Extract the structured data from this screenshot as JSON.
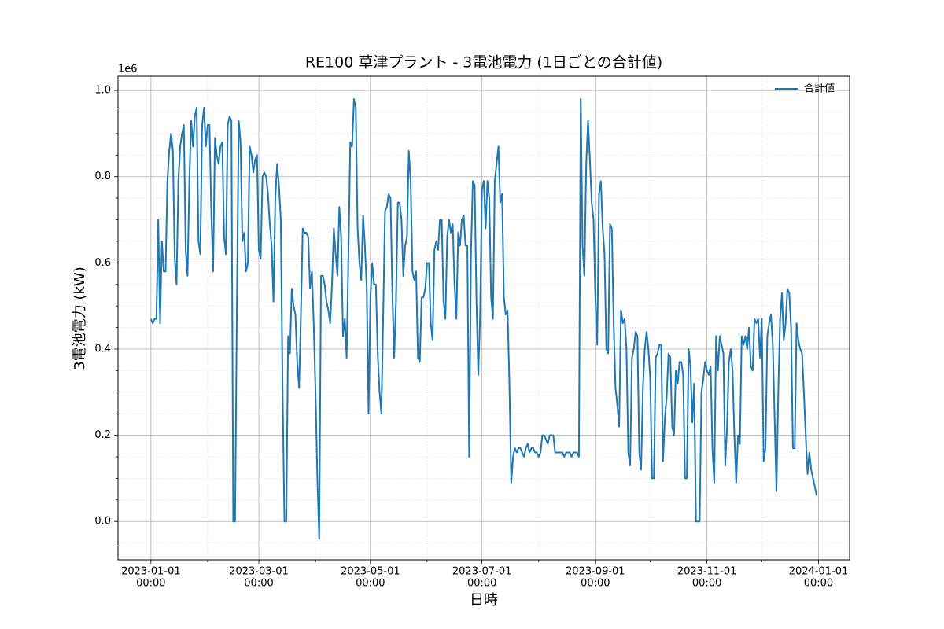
{
  "chart_data": {
    "type": "line",
    "title": "RE100 草津プラント - 3電池電力 (1日ごとの合計値)",
    "x_label": "日時",
    "y_label": "3電池電力 (kW)",
    "y_offset_label": "1e6",
    "legend": "upper right",
    "grid": true,
    "minor_grid": true,
    "xlim": [
      "2022-12-14",
      "2024-01-18"
    ],
    "ylim": [
      -0.089,
      1.033
    ],
    "xticks": [
      {
        "value": "2023-01-01",
        "label": [
          "2023-01-01",
          "00:00"
        ]
      },
      {
        "value": "2023-03-01",
        "label": [
          "2023-03-01",
          "00:00"
        ]
      },
      {
        "value": "2023-05-01",
        "label": [
          "2023-05-01",
          "00:00"
        ]
      },
      {
        "value": "2023-07-01",
        "label": [
          "2023-07-01",
          "00:00"
        ]
      },
      {
        "value": "2023-09-01",
        "label": [
          "2023-09-01",
          "00:00"
        ]
      },
      {
        "value": "2023-11-01",
        "label": [
          "2023-11-01",
          "00:00"
        ]
      },
      {
        "value": "2024-01-01",
        "label": [
          "2024-01-01",
          "00:00"
        ]
      }
    ],
    "xticks_minor": [
      "2023-02-01",
      "2023-04-01",
      "2023-06-01",
      "2023-08-01",
      "2023-10-01",
      "2023-12-01"
    ],
    "yticks": [
      {
        "value": 0,
        "label": "0.0"
      },
      0.2,
      0.4,
      0.6,
      0.8,
      {
        "value": 1,
        "label": "1.0"
      }
    ],
    "yticks_minor": [
      -0.05,
      0.05,
      0.1,
      0.15,
      0.25,
      0.3,
      0.35,
      0.45,
      0.5,
      0.55,
      0.65,
      0.7,
      0.75,
      0.85,
      0.9,
      0.95
    ],
    "x": [
      "2023-01-01",
      "2023-01-02",
      "2023-01-03",
      "2023-01-04",
      "2023-01-05",
      "2023-01-06",
      "2023-01-07",
      "2023-01-08",
      "2023-01-09",
      "2023-01-10",
      "2023-01-11",
      "2023-01-12",
      "2023-01-13",
      "2023-01-14",
      "2023-01-15",
      "2023-01-16",
      "2023-01-17",
      "2023-01-18",
      "2023-01-19",
      "2023-01-20",
      "2023-01-21",
      "2023-01-22",
      "2023-01-23",
      "2023-01-24",
      "2023-01-25",
      "2023-01-26",
      "2023-01-27",
      "2023-01-28",
      "2023-01-29",
      "2023-01-30",
      "2023-01-31",
      "2023-02-01",
      "2023-02-02",
      "2023-02-03",
      "2023-02-04",
      "2023-02-05",
      "2023-02-06",
      "2023-02-07",
      "2023-02-08",
      "2023-02-09",
      "2023-02-10",
      "2023-02-11",
      "2023-02-12",
      "2023-02-13",
      "2023-02-14",
      "2023-02-15",
      "2023-02-16",
      "2023-02-17",
      "2023-02-18",
      "2023-02-19",
      "2023-02-20",
      "2023-02-21",
      "2023-02-22",
      "2023-02-23",
      "2023-02-24",
      "2023-02-25",
      "2023-02-26",
      "2023-02-27",
      "2023-02-28",
      "2023-03-01",
      "2023-03-02",
      "2023-03-03",
      "2023-03-04",
      "2023-03-05",
      "2023-03-06",
      "2023-03-07",
      "2023-03-08",
      "2023-03-09",
      "2023-03-10",
      "2023-03-11",
      "2023-03-12",
      "2023-03-13",
      "2023-03-14",
      "2023-03-15",
      "2023-03-16",
      "2023-03-17",
      "2023-03-18",
      "2023-03-19",
      "2023-03-20",
      "2023-03-21",
      "2023-03-22",
      "2023-03-23",
      "2023-03-24",
      "2023-03-25",
      "2023-03-26",
      "2023-03-27",
      "2023-03-28",
      "2023-03-29",
      "2023-03-30",
      "2023-03-31",
      "2023-04-01",
      "2023-04-02",
      "2023-04-03",
      "2023-04-04",
      "2023-04-05",
      "2023-04-06",
      "2023-04-07",
      "2023-04-08",
      "2023-04-09",
      "2023-04-10",
      "2023-04-11",
      "2023-04-12",
      "2023-04-13",
      "2023-04-14",
      "2023-04-15",
      "2023-04-16",
      "2023-04-17",
      "2023-04-18",
      "2023-04-19",
      "2023-04-20",
      "2023-04-21",
      "2023-04-22",
      "2023-04-23",
      "2023-04-24",
      "2023-04-25",
      "2023-04-26",
      "2023-04-27",
      "2023-04-28",
      "2023-04-29",
      "2023-04-30",
      "2023-05-01",
      "2023-05-02",
      "2023-05-03",
      "2023-05-04",
      "2023-05-05",
      "2023-05-06",
      "2023-05-07",
      "2023-05-08",
      "2023-05-09",
      "2023-05-10",
      "2023-05-11",
      "2023-05-12",
      "2023-05-13",
      "2023-05-14",
      "2023-05-15",
      "2023-05-16",
      "2023-05-17",
      "2023-05-18",
      "2023-05-19",
      "2023-05-20",
      "2023-05-21",
      "2023-05-22",
      "2023-05-23",
      "2023-05-24",
      "2023-05-25",
      "2023-05-26",
      "2023-05-27",
      "2023-05-28",
      "2023-05-29",
      "2023-05-30",
      "2023-05-31",
      "2023-06-01",
      "2023-06-02",
      "2023-06-03",
      "2023-06-04",
      "2023-06-05",
      "2023-06-06",
      "2023-06-07",
      "2023-06-08",
      "2023-06-09",
      "2023-06-10",
      "2023-06-11",
      "2023-06-12",
      "2023-06-13",
      "2023-06-14",
      "2023-06-15",
      "2023-06-16",
      "2023-06-17",
      "2023-06-18",
      "2023-06-19",
      "2023-06-20",
      "2023-06-21",
      "2023-06-22",
      "2023-06-23",
      "2023-06-24",
      "2023-06-25",
      "2023-06-26",
      "2023-06-27",
      "2023-06-28",
      "2023-06-29",
      "2023-06-30",
      "2023-07-01",
      "2023-07-02",
      "2023-07-03",
      "2023-07-04",
      "2023-07-05",
      "2023-07-06",
      "2023-07-07",
      "2023-07-08",
      "2023-07-09",
      "2023-07-10",
      "2023-07-11",
      "2023-07-12",
      "2023-07-13",
      "2023-07-14",
      "2023-07-15",
      "2023-07-16",
      "2023-07-17",
      "2023-07-18",
      "2023-07-19",
      "2023-07-20",
      "2023-07-21",
      "2023-07-22",
      "2023-07-23",
      "2023-07-24",
      "2023-07-25",
      "2023-07-26",
      "2023-07-27",
      "2023-07-28",
      "2023-07-29",
      "2023-07-30",
      "2023-07-31",
      "2023-08-01",
      "2023-08-02",
      "2023-08-03",
      "2023-08-04",
      "2023-08-05",
      "2023-08-06",
      "2023-08-07",
      "2023-08-08",
      "2023-08-09",
      "2023-08-10",
      "2023-08-11",
      "2023-08-12",
      "2023-08-13",
      "2023-08-14",
      "2023-08-15",
      "2023-08-16",
      "2023-08-17",
      "2023-08-18",
      "2023-08-19",
      "2023-08-20",
      "2023-08-21",
      "2023-08-22",
      "2023-08-23",
      "2023-08-24",
      "2023-08-25",
      "2023-08-26",
      "2023-08-27",
      "2023-08-28",
      "2023-08-29",
      "2023-08-30",
      "2023-08-31",
      "2023-09-01",
      "2023-09-02",
      "2023-09-03",
      "2023-09-04",
      "2023-09-05",
      "2023-09-06",
      "2023-09-07",
      "2023-09-08",
      "2023-09-09",
      "2023-09-10",
      "2023-09-11",
      "2023-09-12",
      "2023-09-13",
      "2023-09-14",
      "2023-09-15",
      "2023-09-16",
      "2023-09-17",
      "2023-09-18",
      "2023-09-19",
      "2023-09-20",
      "2023-09-21",
      "2023-09-22",
      "2023-09-23",
      "2023-09-24",
      "2023-09-25",
      "2023-09-26",
      "2023-09-27",
      "2023-09-28",
      "2023-09-29",
      "2023-09-30",
      "2023-10-01",
      "2023-10-02",
      "2023-10-03",
      "2023-10-04",
      "2023-10-05",
      "2023-10-06",
      "2023-10-07",
      "2023-10-08",
      "2023-10-09",
      "2023-10-10",
      "2023-10-11",
      "2023-10-12",
      "2023-10-13",
      "2023-10-14",
      "2023-10-15",
      "2023-10-16",
      "2023-10-17",
      "2023-10-18",
      "2023-10-19",
      "2023-10-20",
      "2023-10-21",
      "2023-10-22",
      "2023-10-23",
      "2023-10-24",
      "2023-10-25",
      "2023-10-26",
      "2023-10-27",
      "2023-10-28",
      "2023-10-29",
      "2023-10-30",
      "2023-10-31",
      "2023-11-01",
      "2023-11-02",
      "2023-11-03",
      "2023-11-04",
      "2023-11-05",
      "2023-11-06",
      "2023-11-07",
      "2023-11-08",
      "2023-11-09",
      "2023-11-10",
      "2023-11-11",
      "2023-11-12",
      "2023-11-13",
      "2023-11-14",
      "2023-11-15",
      "2023-11-16",
      "2023-11-17",
      "2023-11-18",
      "2023-11-19",
      "2023-11-20",
      "2023-11-21",
      "2023-11-22",
      "2023-11-23",
      "2023-11-24",
      "2023-11-25",
      "2023-11-26",
      "2023-11-27",
      "2023-11-28",
      "2023-11-29",
      "2023-11-30",
      "2023-12-01",
      "2023-12-02",
      "2023-12-03",
      "2023-12-04",
      "2023-12-05",
      "2023-12-06",
      "2023-12-07",
      "2023-12-08",
      "2023-12-09",
      "2023-12-10",
      "2023-12-11",
      "2023-12-12",
      "2023-12-13",
      "2023-12-14",
      "2023-12-15",
      "2023-12-16",
      "2023-12-17",
      "2023-12-18",
      "2023-12-19",
      "2023-12-20",
      "2023-12-21",
      "2023-12-22",
      "2023-12-23",
      "2023-12-24",
      "2023-12-25",
      "2023-12-26",
      "2023-12-27",
      "2023-12-28",
      "2023-12-29",
      "2023-12-30",
      "2023-12-31"
    ],
    "series": [
      {
        "name": "合計値",
        "color": "#1f77b4",
        "values": [
          0.47,
          0.46,
          0.47,
          0.47,
          0.7,
          0.46,
          0.65,
          0.58,
          0.58,
          0.79,
          0.86,
          0.9,
          0.86,
          0.61,
          0.55,
          0.79,
          0.87,
          0.9,
          0.92,
          0.63,
          0.57,
          0.79,
          0.93,
          0.87,
          0.94,
          0.96,
          0.65,
          0.62,
          0.92,
          0.96,
          0.87,
          0.92,
          0.92,
          0.72,
          0.58,
          0.89,
          0.85,
          0.83,
          0.87,
          0.88,
          0.66,
          0.62,
          0.92,
          0.94,
          0.93,
          0.0,
          0.0,
          0.5,
          0.93,
          0.88,
          0.65,
          0.67,
          0.58,
          0.6,
          0.87,
          0.85,
          0.81,
          0.84,
          0.85,
          0.63,
          0.61,
          0.8,
          0.81,
          0.8,
          0.76,
          0.69,
          0.64,
          0.51,
          0.75,
          0.83,
          0.78,
          0.7,
          0.3,
          0.0,
          0.0,
          0.43,
          0.39,
          0.54,
          0.5,
          0.48,
          0.37,
          0.31,
          0.48,
          0.68,
          0.67,
          0.67,
          0.66,
          0.54,
          0.58,
          0.46,
          0.3,
          0.1,
          -0.04,
          0.57,
          0.57,
          0.55,
          0.51,
          0.49,
          0.46,
          0.55,
          0.68,
          0.62,
          0.57,
          0.73,
          0.66,
          0.43,
          0.47,
          0.38,
          0.62,
          0.88,
          0.87,
          0.98,
          0.96,
          0.68,
          0.6,
          0.56,
          0.71,
          0.64,
          0.54,
          0.25,
          0.52,
          0.6,
          0.55,
          0.55,
          0.39,
          0.3,
          0.25,
          0.48,
          0.72,
          0.73,
          0.76,
          0.75,
          0.53,
          0.38,
          0.51,
          0.74,
          0.74,
          0.7,
          0.57,
          0.64,
          0.66,
          0.86,
          0.79,
          0.58,
          0.56,
          0.58,
          0.38,
          0.37,
          0.52,
          0.52,
          0.54,
          0.6,
          0.6,
          0.46,
          0.42,
          0.63,
          0.65,
          0.63,
          0.7,
          0.7,
          0.51,
          0.47,
          0.66,
          0.7,
          0.67,
          0.69,
          0.55,
          0.47,
          0.67,
          0.64,
          0.7,
          0.71,
          0.64,
          0.64,
          0.15,
          0.62,
          0.79,
          0.78,
          0.51,
          0.34,
          0.48,
          0.77,
          0.79,
          0.68,
          0.79,
          0.75,
          0.52,
          0.47,
          0.79,
          0.83,
          0.87,
          0.74,
          0.76,
          0.52,
          0.48,
          0.49,
          0.32,
          0.09,
          0.15,
          0.17,
          0.16,
          0.17,
          0.17,
          0.16,
          0.15,
          0.17,
          0.18,
          0.16,
          0.17,
          0.17,
          0.16,
          0.16,
          0.15,
          0.16,
          0.2,
          0.2,
          0.19,
          0.18,
          0.2,
          0.2,
          0.2,
          0.16,
          0.16,
          0.16,
          0.16,
          0.16,
          0.15,
          0.16,
          0.16,
          0.16,
          0.15,
          0.16,
          0.16,
          0.16,
          0.15,
          0.98,
          0.64,
          0.57,
          0.83,
          0.93,
          0.84,
          0.74,
          0.7,
          0.52,
          0.41,
          0.76,
          0.79,
          0.68,
          0.62,
          0.4,
          0.39,
          0.69,
          0.68,
          0.46,
          0.31,
          0.27,
          0.22,
          0.49,
          0.46,
          0.47,
          0.4,
          0.16,
          0.13,
          0.38,
          0.4,
          0.44,
          0.43,
          0.16,
          0.12,
          0.31,
          0.4,
          0.44,
          0.4,
          0.33,
          0.1,
          0.1,
          0.38,
          0.39,
          0.41,
          0.41,
          0.14,
          0.24,
          0.29,
          0.39,
          0.38,
          0.22,
          0.2,
          0.35,
          0.32,
          0.37,
          0.37,
          0.34,
          0.1,
          0.1,
          0.4,
          0.36,
          0.23,
          0.32,
          0.0,
          0.0,
          0.0,
          0.3,
          0.33,
          0.37,
          0.35,
          0.34,
          0.36,
          0.17,
          0.09,
          0.43,
          0.35,
          0.43,
          0.41,
          0.39,
          0.13,
          0.22,
          0.37,
          0.4,
          0.35,
          0.2,
          0.09,
          0.2,
          0.18,
          0.43,
          0.41,
          0.43,
          0.4,
          0.45,
          0.36,
          0.35,
          0.47,
          0.46,
          0.47,
          0.38,
          0.47,
          0.14,
          0.17,
          0.43,
          0.46,
          0.48,
          0.41,
          0.24,
          0.07,
          0.3,
          0.47,
          0.53,
          0.42,
          0.46,
          0.54,
          0.53,
          0.45,
          0.17,
          0.17,
          0.46,
          0.42,
          0.4,
          0.39,
          0.3,
          0.2,
          0.11,
          0.16,
          0.12,
          0.1,
          0.08,
          0.06
        ]
      }
    ]
  }
}
